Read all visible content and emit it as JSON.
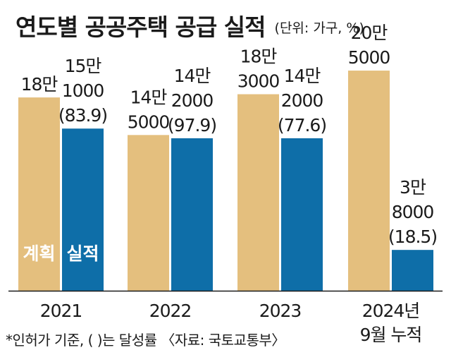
{
  "chart_data": {
    "type": "bar",
    "title": "연도별 공공주택 공급 실적",
    "unit_note": "(단위: 가구, %)",
    "categories": [
      "2021",
      "2022",
      "2023",
      "2024년\n9월 누적"
    ],
    "series": [
      {
        "name": "계획",
        "color": "#E4BF7E",
        "values": [
          180000,
          145000,
          183000,
          205000
        ],
        "labels": [
          "18만",
          "14만\n5000",
          "18만\n3000",
          "20만\n5000"
        ]
      },
      {
        "name": "실적",
        "color": "#0E6EA8",
        "values": [
          151000,
          142000,
          142000,
          38000
        ],
        "labels": [
          "15만\n1000\n(83.9)",
          "14만\n2000\n(97.9)",
          "14만\n2000\n(77.6)",
          "3만\n8000\n(18.5)"
        ]
      }
    ],
    "ylim": [
      0,
      230000
    ],
    "legend_placement": "inside-bottom-left",
    "footnote": "*인허가 기준, ( )는 달성률 〈자료: 국토교통부〉"
  }
}
